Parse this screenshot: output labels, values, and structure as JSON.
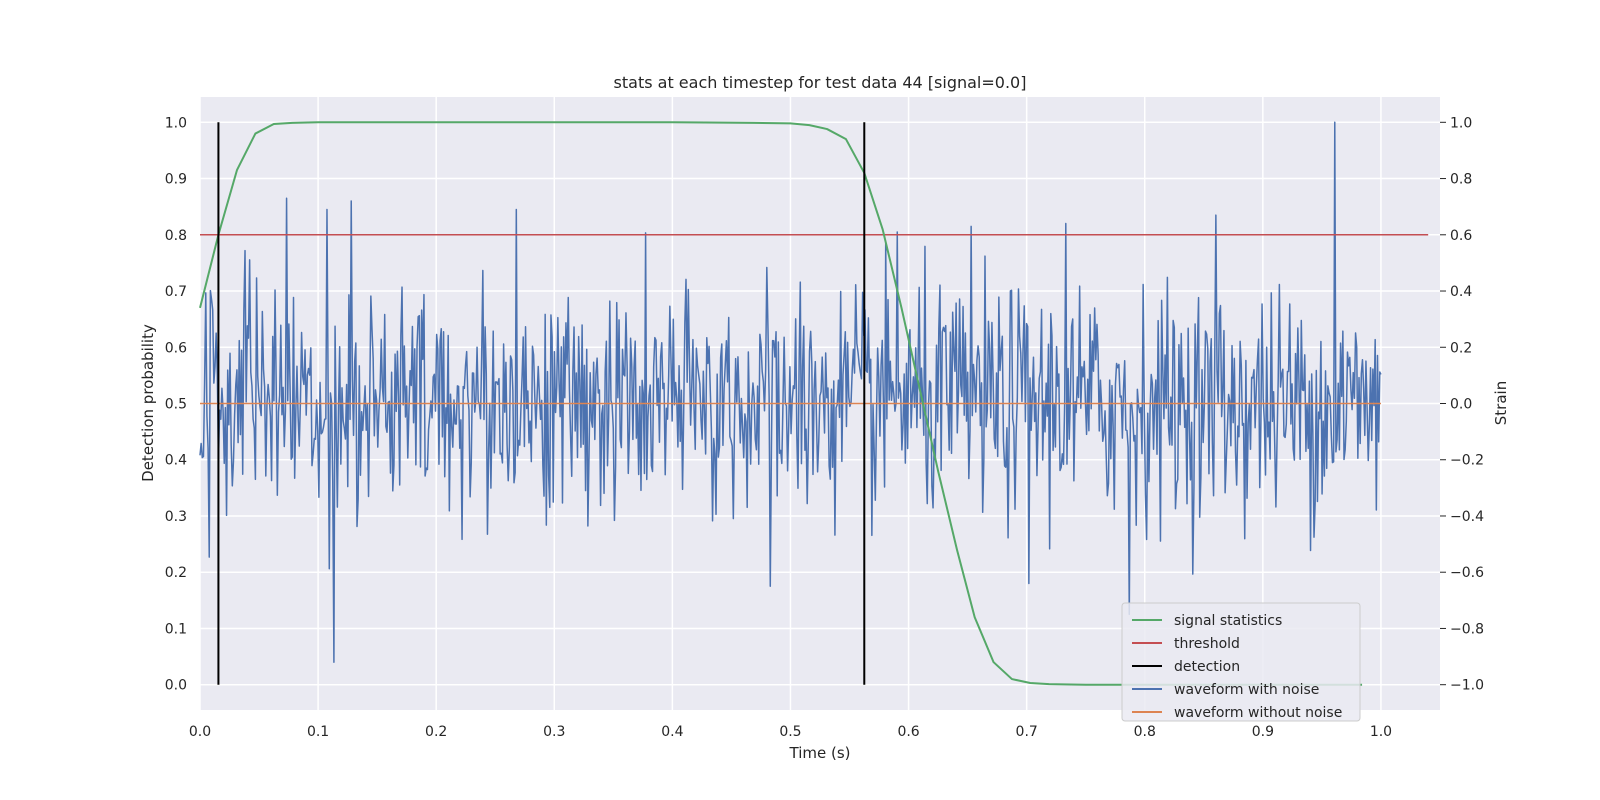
{
  "chart_data": {
    "type": "line",
    "title": "stats at each timestep for test data 44 [signal=0.0]",
    "xlabel": "Time (s)",
    "ylabel": "Detection probability",
    "ylabel_right": "Strain",
    "xlim": [
      0.0,
      1.05
    ],
    "ylim": [
      -0.045,
      1.045
    ],
    "ylim_right": [
      -1.09,
      1.09
    ],
    "x_ticks": [
      0.0,
      0.1,
      0.2,
      0.3,
      0.4,
      0.5,
      0.6,
      0.7,
      0.8,
      0.9,
      1.0
    ],
    "x_tick_labels": [
      "0.0",
      "0.1",
      "0.2",
      "0.3",
      "0.4",
      "0.5",
      "0.6",
      "0.7",
      "0.8",
      "0.9",
      "1.0"
    ],
    "y_ticks": [
      0.0,
      0.1,
      0.2,
      0.3,
      0.4,
      0.5,
      0.6,
      0.7,
      0.8,
      0.9,
      1.0
    ],
    "y_tick_labels": [
      "0.0",
      "0.1",
      "0.2",
      "0.3",
      "0.4",
      "0.5",
      "0.6",
      "0.7",
      "0.8",
      "0.9",
      "1.0"
    ],
    "y_right_ticks": [
      -1.0,
      -0.8,
      -0.6,
      -0.4,
      -0.2,
      0.0,
      0.2,
      0.4,
      0.6,
      0.8,
      1.0
    ],
    "y_right_tick_labels": [
      "−1.0",
      "−0.8",
      "−0.6",
      "−0.4",
      "−0.2",
      "0.0",
      "0.2",
      "0.4",
      "0.6",
      "0.8",
      "1.0"
    ],
    "grid": true,
    "legend_position": "lower-right",
    "colors": {
      "plot_background": "#eaeaf2",
      "grid": "#ffffff",
      "signal_statistics": "#55a868",
      "threshold": "#c44e52",
      "detection": "#000000",
      "waveform_with_noise": "#4c72b0",
      "waveform_without_noise": "#dd8452"
    },
    "series": [
      {
        "name": "signal statistics",
        "axis": "left",
        "x": [
          0.0,
          0.0156,
          0.0313,
          0.0469,
          0.0625,
          0.0781,
          0.1,
          0.2,
          0.3,
          0.4,
          0.469,
          0.5,
          0.516,
          0.531,
          0.547,
          0.5625,
          0.578,
          0.594,
          0.609,
          0.625,
          0.641,
          0.656,
          0.672,
          0.6875,
          0.703,
          0.719,
          0.75,
          0.8,
          0.9,
          0.984
        ],
        "y": [
          0.67,
          0.8,
          0.915,
          0.98,
          0.997,
          0.999,
          1.0,
          1.0,
          1.0,
          1.0,
          0.999,
          0.998,
          0.995,
          0.988,
          0.97,
          0.91,
          0.81,
          0.67,
          0.53,
          0.38,
          0.24,
          0.12,
          0.04,
          0.01,
          0.003,
          0.001,
          0.0,
          0.0,
          0.0,
          0.0
        ]
      },
      {
        "name": "threshold",
        "axis": "left",
        "x": [
          0.0,
          1.04
        ],
        "y": [
          0.8,
          0.8
        ]
      },
      {
        "name": "detection",
        "axis": "left",
        "type": "vlines",
        "x": [
          0.0156,
          0.5625
        ],
        "y": [
          0.0,
          1.0
        ]
      },
      {
        "name": "waveform with noise",
        "axis": "right",
        "description_of_values": "noise strain series, 1024 samples over 0.0 to 1.0 s, mostly within -0.3 to 0.3 with peaks to 1.0 at 0.961 s and -0.92 at 0.113 s",
        "sample_count": 1024,
        "x_range": [
          0.0,
          1.0
        ],
        "peaks": [
          {
            "x": 0.073,
            "y": 0.73
          },
          {
            "x": 0.108,
            "y": 0.69
          },
          {
            "x": 0.113,
            "y": -0.92
          },
          {
            "x": 0.128,
            "y": 0.72
          },
          {
            "x": 0.268,
            "y": 0.69
          },
          {
            "x": 0.483,
            "y": -0.65
          },
          {
            "x": 0.59,
            "y": 0.61
          },
          {
            "x": 0.653,
            "y": 0.63
          },
          {
            "x": 0.702,
            "y": -0.64
          },
          {
            "x": 0.733,
            "y": 0.64
          },
          {
            "x": 0.787,
            "y": -0.75
          },
          {
            "x": 0.86,
            "y": 0.67
          },
          {
            "x": 0.961,
            "y": 1.0
          }
        ]
      },
      {
        "name": "waveform without noise",
        "axis": "right",
        "x": [
          0.0,
          1.0
        ],
        "y": [
          0.0,
          0.0
        ]
      }
    ]
  }
}
